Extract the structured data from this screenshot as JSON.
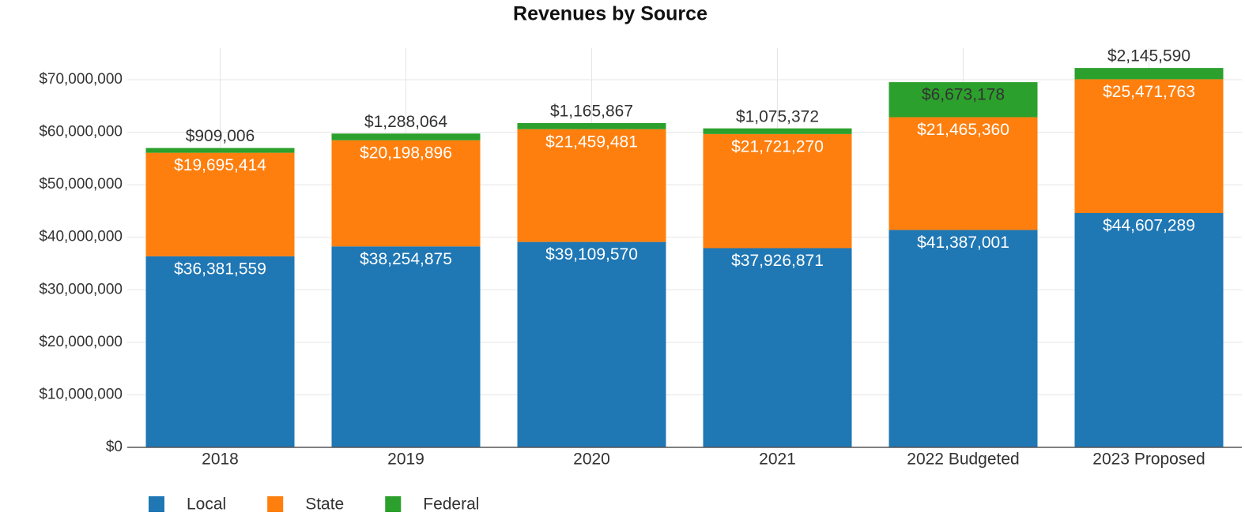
{
  "chart_data": {
    "type": "stacked_bar",
    "title": "Revenues by Source",
    "categories": [
      "2018",
      "2019",
      "2020",
      "2021",
      "2022 Budgeted",
      "2023 Proposed"
    ],
    "series": [
      {
        "name": "Local",
        "color": "#1f77b4",
        "values": [
          36381559,
          38254875,
          39109570,
          37926871,
          41387001,
          44607289
        ],
        "value_labels": [
          "$36,381,559",
          "$38,254,875",
          "$39,109,570",
          "$37,926,871",
          "$41,387,001",
          "$44,607,289"
        ]
      },
      {
        "name": "State",
        "color": "#ff7f0e",
        "values": [
          19695414,
          20198896,
          21459481,
          21721270,
          21465360,
          25471763
        ],
        "value_labels": [
          "$19,695,414",
          "$20,198,896",
          "$21,459,481",
          "$21,721,270",
          "$21,465,360",
          "$25,471,763"
        ]
      },
      {
        "name": "Federal",
        "color": "#2ca02c",
        "values": [
          909006,
          1288064,
          1165867,
          1075372,
          6673178,
          2145590
        ],
        "value_labels": [
          "$909,006",
          "$1,288,064",
          "$1,165,867",
          "$1,075,372",
          "$6,673,178",
          "$2,145,590"
        ]
      }
    ],
    "ylim": [
      0,
      76000000
    ],
    "yticks": [
      {
        "value": 0,
        "label": "$0"
      },
      {
        "value": 10000000,
        "label": "$10,000,000"
      },
      {
        "value": 20000000,
        "label": "$20,000,000"
      },
      {
        "value": 30000000,
        "label": "$30,000,000"
      },
      {
        "value": 40000000,
        "label": "$40,000,000"
      },
      {
        "value": 50000000,
        "label": "$50,000,000"
      },
      {
        "value": 60000000,
        "label": "$60,000,000"
      },
      {
        "value": 70000000,
        "label": "$70,000,000"
      }
    ],
    "grid": true,
    "legend": "bottom-left"
  }
}
